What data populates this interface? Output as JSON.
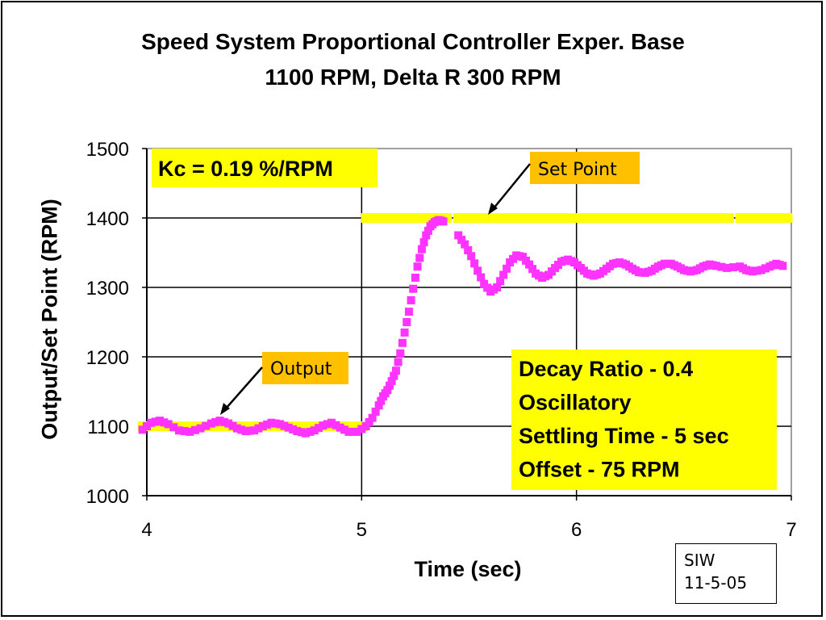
{
  "title_line1": "Speed System Proportional Controller Exper. Base",
  "title_line2": "1100 RPM, Delta R 300 RPM",
  "stamp": {
    "line1": "SIW",
    "line2": "11-5-05"
  },
  "chart_data": {
    "type": "scatter",
    "xlabel": "Time (sec)",
    "ylabel": "Output/Set Point (RPM)",
    "xlim": [
      4,
      7
    ],
    "ylim": [
      1000,
      1500
    ],
    "xticks": [
      "4",
      "5",
      "6",
      "7"
    ],
    "yticks": [
      "1000",
      "1100",
      "1200",
      "1300",
      "1400",
      "1500"
    ],
    "grid": "major gridlines at each tick",
    "annotations": {
      "gain": "Kc = 0.19 %/RPM",
      "setpoint": "Set Point",
      "output": "Output",
      "metrics": [
        "Decay Ratio - 0.4",
        "Oscillatory",
        "Settling Time - 5 sec",
        "Offset - 75 RPM"
      ]
    },
    "colors": {
      "output": "#ff33ff",
      "setpoint": "#ffff00",
      "annotation_box": "#ffff00",
      "label_box": "#ffc000"
    },
    "series": [
      {
        "key": "setpoint",
        "marker": "square",
        "points": [
          [
            4.0,
            1100
          ],
          [
            4.5,
            1100
          ],
          [
            5.0,
            1100
          ],
          [
            5.02,
            1400
          ],
          [
            5.3,
            1400
          ],
          [
            5.6,
            1400
          ],
          [
            6.0,
            1400
          ],
          [
            6.4,
            1400
          ],
          [
            6.8,
            1400
          ],
          [
            6.98,
            1400
          ]
        ],
        "gaps": [
          [
            4.66,
            4.69
          ],
          [
            5.4,
            5.44
          ],
          [
            6.72,
            6.76
          ]
        ]
      },
      {
        "key": "output",
        "marker": "square",
        "points": [
          [
            3.98,
            1095
          ],
          [
            4.02,
            1105
          ],
          [
            4.06,
            1108
          ],
          [
            4.1,
            1103
          ],
          [
            4.15,
            1094
          ],
          [
            4.2,
            1092
          ],
          [
            4.25,
            1097
          ],
          [
            4.3,
            1104
          ],
          [
            4.34,
            1108
          ],
          [
            4.38,
            1104
          ],
          [
            4.42,
            1097
          ],
          [
            4.46,
            1093
          ],
          [
            4.5,
            1094
          ],
          [
            4.54,
            1100
          ],
          [
            4.58,
            1105
          ],
          [
            4.62,
            1103
          ],
          [
            4.66,
            1098
          ],
          [
            4.7,
            1093
          ],
          [
            4.74,
            1090
          ],
          [
            4.78,
            1094
          ],
          [
            4.82,
            1101
          ],
          [
            4.86,
            1105
          ],
          [
            4.9,
            1098
          ],
          [
            4.94,
            1092
          ],
          [
            4.98,
            1092
          ],
          [
            5.02,
            1100
          ],
          [
            5.05,
            1112
          ],
          [
            5.08,
            1130
          ],
          [
            5.1,
            1143
          ],
          [
            5.12,
            1152
          ],
          [
            5.14,
            1165
          ],
          [
            5.16,
            1180
          ],
          [
            5.18,
            1205
          ],
          [
            5.2,
            1235
          ],
          [
            5.22,
            1265
          ],
          [
            5.24,
            1298
          ],
          [
            5.26,
            1330
          ],
          [
            5.28,
            1355
          ],
          [
            5.3,
            1375
          ],
          [
            5.32,
            1388
          ],
          [
            5.34,
            1394
          ],
          [
            5.36,
            1397
          ],
          [
            5.38,
            1395
          ],
          [
            5.45,
            1375
          ],
          [
            5.48,
            1362
          ],
          [
            5.51,
            1345
          ],
          [
            5.54,
            1324
          ],
          [
            5.57,
            1305
          ],
          [
            5.6,
            1294
          ],
          [
            5.63,
            1300
          ],
          [
            5.66,
            1318
          ],
          [
            5.69,
            1336
          ],
          [
            5.72,
            1346
          ],
          [
            5.75,
            1344
          ],
          [
            5.78,
            1333
          ],
          [
            5.81,
            1320
          ],
          [
            5.84,
            1314
          ],
          [
            5.87,
            1318
          ],
          [
            5.9,
            1328
          ],
          [
            5.93,
            1337
          ],
          [
            5.96,
            1340
          ],
          [
            5.99,
            1336
          ],
          [
            6.02,
            1328
          ],
          [
            6.05,
            1320
          ],
          [
            6.08,
            1317
          ],
          [
            6.11,
            1320
          ],
          [
            6.14,
            1327
          ],
          [
            6.17,
            1334
          ],
          [
            6.2,
            1336
          ],
          [
            6.23,
            1333
          ],
          [
            6.26,
            1327
          ],
          [
            6.29,
            1322
          ],
          [
            6.32,
            1321
          ],
          [
            6.35,
            1324
          ],
          [
            6.38,
            1330
          ],
          [
            6.41,
            1334
          ],
          [
            6.44,
            1334
          ],
          [
            6.47,
            1330
          ],
          [
            6.5,
            1325
          ],
          [
            6.53,
            1323
          ],
          [
            6.56,
            1325
          ],
          [
            6.59,
            1330
          ],
          [
            6.62,
            1333
          ],
          [
            6.65,
            1331
          ],
          [
            6.7,
            1328
          ],
          [
            6.76,
            1330
          ],
          [
            6.79,
            1325
          ],
          [
            6.82,
            1323
          ],
          [
            6.86,
            1325
          ],
          [
            6.9,
            1330
          ],
          [
            6.93,
            1334
          ],
          [
            6.96,
            1331
          ]
        ]
      }
    ]
  }
}
